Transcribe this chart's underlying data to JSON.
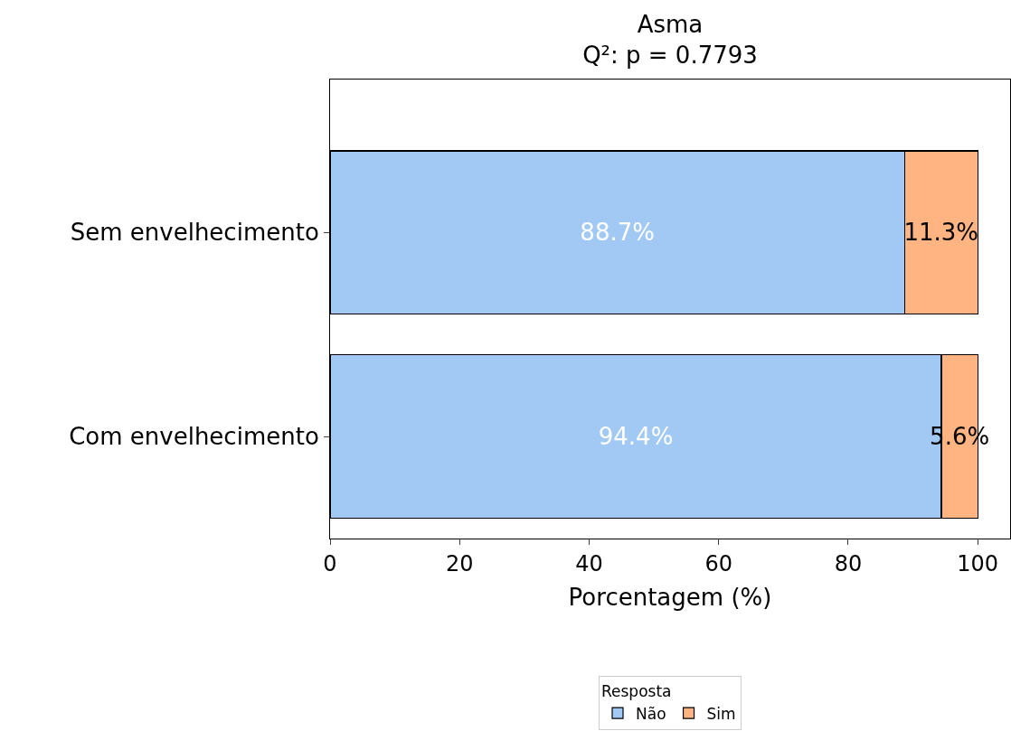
{
  "chart_data": {
    "type": "bar",
    "orientation": "horizontal",
    "stacked": true,
    "title": "Asma\nQ²: p = 0.7793",
    "xlabel": "Porcentagem (%)",
    "legend_title": "Resposta",
    "categories": [
      "Sem envelhecimento",
      "Com envelhecimento"
    ],
    "series": [
      {
        "name": "Não",
        "color": "#a1c9f4",
        "values": [
          88.7,
          94.4
        ],
        "value_labels": [
          "88.7%",
          "94.4%"
        ]
      },
      {
        "name": "Sim",
        "color": "#ffb482",
        "values": [
          11.3,
          5.6
        ],
        "value_labels": [
          "11.3%",
          "5.6%"
        ]
      }
    ],
    "xlim": [
      0,
      105
    ],
    "xticks": [
      0,
      20,
      40,
      60,
      80,
      100
    ],
    "legend": "bottom"
  }
}
